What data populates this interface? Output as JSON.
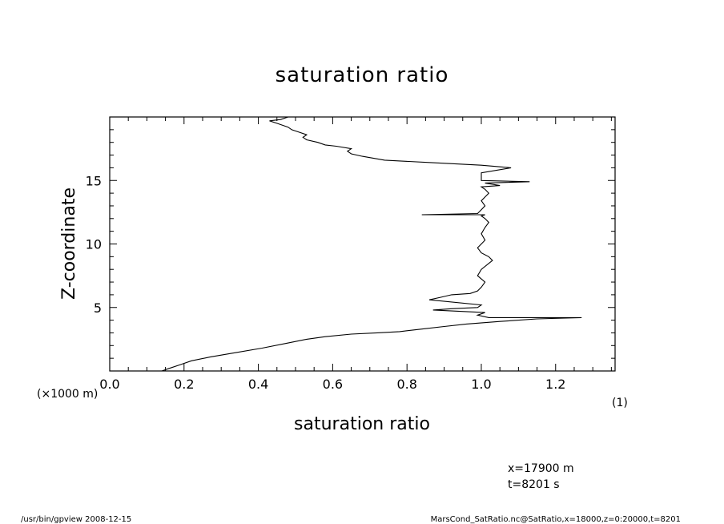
{
  "chart_data": {
    "type": "line",
    "title": "saturation ratio",
    "xlabel": "saturation ratio",
    "ylabel": "Z-coordinate",
    "x_unit": "(1)",
    "y_unit": "(×1000 m)",
    "xlim": [
      0.0,
      1.36
    ],
    "ylim": [
      0.0,
      20.0
    ],
    "x_ticks": [
      "0.0",
      "0.2",
      "0.4",
      "0.6",
      "0.8",
      "1.0",
      "1.2"
    ],
    "y_ticks": [
      "5",
      "10",
      "15"
    ],
    "grid": false,
    "series": [
      {
        "x": [
          0.14,
          0.16,
          0.19,
          0.22,
          0.27,
          0.33,
          0.41,
          0.48,
          0.53,
          0.58,
          0.65,
          0.72,
          0.78,
          0.84,
          0.9,
          0.96,
          1.05,
          1.15,
          1.27,
          1.02,
          0.99,
          1.01,
          0.87,
          0.92,
          0.99,
          1.0,
          0.86,
          0.89,
          0.92,
          0.97,
          0.99,
          1.0,
          1.01,
          0.99,
          1.0,
          1.03,
          1.02,
          1.0,
          0.99,
          1.0,
          1.01,
          1.0,
          1.01,
          1.02,
          1.01,
          1.0,
          1.01,
          0.84,
          0.99,
          1.0,
          1.01,
          1.0,
          1.01,
          1.02,
          1.01,
          1.0,
          1.05,
          1.01,
          1.13,
          1.0,
          1.0,
          1.08,
          1.0,
          0.87,
          0.74,
          0.68,
          0.65,
          0.64,
          0.65,
          0.61,
          0.58,
          0.56,
          0.53,
          0.52,
          0.53,
          0.51,
          0.49,
          0.48,
          0.47,
          0.45,
          0.43,
          0.46,
          0.48
        ],
        "y": [
          0.0,
          0.2,
          0.5,
          0.8,
          1.1,
          1.4,
          1.8,
          2.2,
          2.5,
          2.7,
          2.9,
          3.0,
          3.1,
          3.3,
          3.5,
          3.7,
          3.9,
          4.1,
          4.2,
          4.2,
          4.4,
          4.6,
          4.8,
          4.9,
          5.0,
          5.2,
          5.6,
          5.8,
          6.0,
          6.1,
          6.3,
          6.6,
          7.0,
          7.5,
          8.0,
          8.7,
          9.0,
          9.3,
          9.7,
          10.0,
          10.3,
          10.8,
          11.3,
          11.7,
          12.0,
          12.2,
          12.3,
          12.3,
          12.4,
          12.7,
          13.0,
          13.4,
          13.7,
          14.0,
          14.3,
          14.5,
          14.6,
          14.8,
          14.9,
          15.0,
          15.6,
          16.0,
          16.2,
          16.4,
          16.6,
          16.9,
          17.1,
          17.3,
          17.5,
          17.7,
          17.8,
          18.0,
          18.2,
          18.4,
          18.6,
          18.8,
          19.0,
          19.2,
          19.3,
          19.5,
          19.7,
          19.8,
          20.0
        ]
      }
    ]
  },
  "annotations": {
    "position_x": "x=17900  m",
    "time": "t=8201  s"
  },
  "footer": {
    "left": "/usr/bin/gpview   2008-12-15",
    "right": "MarsCond_SatRatio.nc@SatRatio,x=18000,z=0:20000,t=8201"
  }
}
